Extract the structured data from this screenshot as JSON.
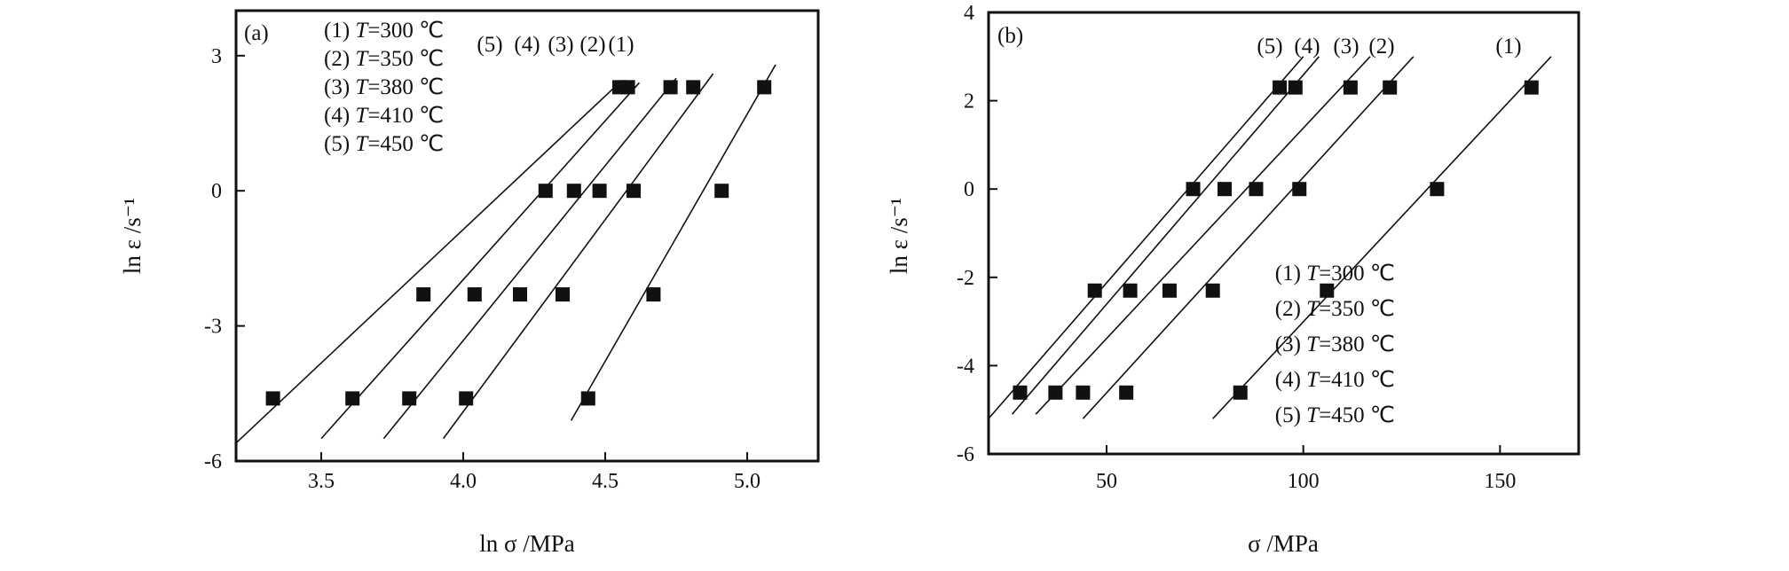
{
  "chart_data": [
    {
      "type": "scatter",
      "panel_label": "(a)",
      "xlabel": "ln σ /MPa",
      "ylabel": "ln ε /s⁻¹",
      "xlim": [
        3.2,
        5.25
      ],
      "ylim": [
        -6,
        4
      ],
      "xticks": [
        3.5,
        4.0,
        4.5,
        5.0
      ],
      "xtick_labels": [
        "3.5",
        "4.0",
        "4.5",
        "5.0"
      ],
      "yticks": [
        -6,
        -3,
        0,
        3
      ],
      "ytick_labels": [
        "-6",
        "-3",
        "0",
        "3"
      ],
      "legend": [
        "(1) T=300 ℃",
        "(2) T=350 ℃",
        "(3) T=380 ℃",
        "(4) T=410 ℃",
        "(5) T=450 ℃"
      ],
      "legend_position": "top-left",
      "curve_labels": [
        "(5)",
        "(4)",
        "(3)",
        "(2)",
        "(1)"
      ],
      "series": [
        {
          "label": "(1)",
          "x": [
            4.44,
            4.67,
            4.91,
            5.06
          ],
          "y": [
            -4.61,
            -2.3,
            0.0,
            2.3
          ],
          "fit": [
            [
              4.38,
              -5.1
            ],
            [
              5.1,
              2.8
            ]
          ]
        },
        {
          "label": "(2)",
          "x": [
            4.01,
            4.35,
            4.6,
            4.81
          ],
          "y": [
            -4.61,
            -2.3,
            0.0,
            2.3
          ],
          "fit": [
            [
              3.93,
              -5.5
            ],
            [
              4.88,
              2.6
            ]
          ]
        },
        {
          "label": "(3)",
          "x": [
            3.81,
            4.2,
            4.48,
            4.73
          ],
          "y": [
            -4.61,
            -2.3,
            0.0,
            2.3
          ],
          "fit": [
            [
              3.72,
              -5.5
            ],
            [
              4.75,
              2.5
            ]
          ]
        },
        {
          "label": "(4)",
          "x": [
            3.61,
            4.04,
            4.39,
            4.58
          ],
          "y": [
            -4.61,
            -2.3,
            0.0,
            2.3
          ],
          "fit": [
            [
              3.5,
              -5.5
            ],
            [
              4.62,
              2.4
            ]
          ]
        },
        {
          "label": "(5)",
          "x": [
            3.33,
            3.86,
            4.29,
            4.55
          ],
          "y": [
            -4.61,
            -2.3,
            0.0,
            2.3
          ],
          "fit": [
            [
              3.2,
              -5.6
            ],
            [
              4.55,
              2.4
            ]
          ]
        }
      ]
    },
    {
      "type": "scatter",
      "panel_label": "(b)",
      "xlabel": "σ /MPa",
      "ylabel": "ln ε /s⁻¹",
      "xlim": [
        20,
        170
      ],
      "ylim": [
        -6,
        4
      ],
      "xticks": [
        50,
        100,
        150
      ],
      "xtick_labels": [
        "50",
        "100",
        "150"
      ],
      "yticks": [
        -6,
        -4,
        -2,
        0,
        2,
        4
      ],
      "ytick_labels": [
        "-6",
        "-4",
        "-2",
        "0",
        "2",
        "4"
      ],
      "legend": [
        "(1) T=300 ℃",
        "(2) T=350 ℃",
        "(3) T=380 ℃",
        "(4) T=410 ℃",
        "(5) T=450 ℃"
      ],
      "legend_position": "bottom-right",
      "curve_labels": [
        "(5)",
        "(4)",
        "(3)",
        "(2)",
        "(1)"
      ],
      "series": [
        {
          "label": "(1)",
          "x": [
            84,
            106,
            134,
            158
          ],
          "y": [
            -4.61,
            -2.3,
            0.0,
            2.3
          ],
          "fit": [
            [
              77,
              -5.2
            ],
            [
              163,
              3.0
            ]
          ]
        },
        {
          "label": "(2)",
          "x": [
            55,
            77,
            99,
            122
          ],
          "y": [
            -4.61,
            -2.3,
            0.0,
            2.3
          ],
          "fit": [
            [
              44,
              -5.2
            ],
            [
              128,
              3.0
            ]
          ]
        },
        {
          "label": "(3)",
          "x": [
            44,
            66,
            88,
            112
          ],
          "y": [
            -4.61,
            -2.3,
            0.0,
            2.3
          ],
          "fit": [
            [
              32,
              -5.1
            ],
            [
              117,
              3.0
            ]
          ]
        },
        {
          "label": "(4)",
          "x": [
            37,
            56,
            80,
            98
          ],
          "y": [
            -4.61,
            -2.3,
            0.0,
            2.3
          ],
          "fit": [
            [
              26,
              -5.1
            ],
            [
              104,
              3.0
            ]
          ]
        },
        {
          "label": "(5)",
          "x": [
            28,
            47,
            72,
            94
          ],
          "y": [
            -4.61,
            -2.3,
            0.0,
            2.3
          ],
          "fit": [
            [
              20,
              -5.2
            ],
            [
              100,
              3.0
            ]
          ]
        }
      ]
    }
  ]
}
